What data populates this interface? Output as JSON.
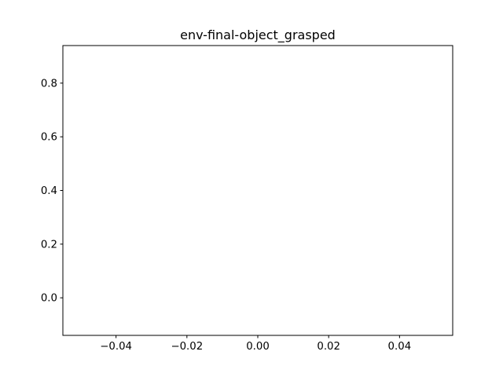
{
  "chart_data": {
    "type": "line",
    "title": "env-final-object_grasped",
    "xlabel": "",
    "ylabel": "",
    "xlim": [
      -0.055,
      0.055
    ],
    "ylim": [
      -0.14,
      0.94
    ],
    "xticks": [
      -0.04,
      -0.02,
      0.0,
      0.02,
      0.04
    ],
    "xtick_labels": [
      "−0.04",
      "−0.02",
      "0.00",
      "0.02",
      "0.04"
    ],
    "yticks": [
      0.0,
      0.2,
      0.4,
      0.6,
      0.8
    ],
    "ytick_labels": [
      "0.0",
      "0.2",
      "0.4",
      "0.6",
      "0.8"
    ],
    "series": [],
    "grid": false,
    "legend": "none"
  }
}
